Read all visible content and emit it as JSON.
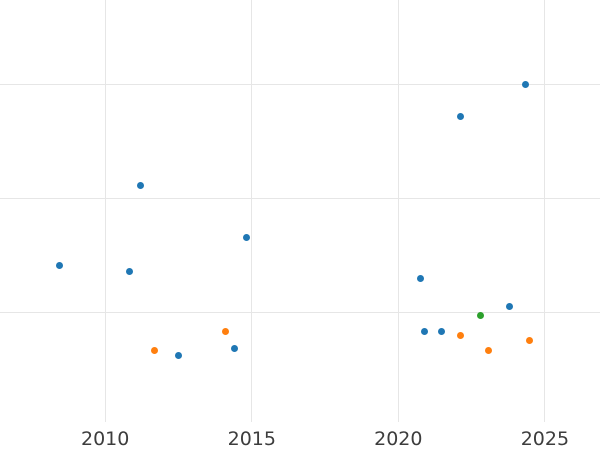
{
  "chart_data": {
    "type": "scatter",
    "title": "",
    "xlabel": "",
    "ylabel": "",
    "grid": true,
    "legend": false,
    "x_ticks": [
      {
        "year": 2010,
        "label": "2010"
      },
      {
        "year": 2015,
        "label": "2015"
      },
      {
        "year": 2020,
        "label": "2020"
      },
      {
        "year": 2025,
        "label": "2025"
      }
    ],
    "y_gridline_units": [
      1,
      2,
      3
    ],
    "y_tick_labels_visible": false,
    "y_unit_note": "y-axis tick labels are cropped out of view; y values given in gridline units (one visible gridline = 1 unit)",
    "xlim_years": [
      2006.41,
      2026.88
    ],
    "ylim_units": [
      -0.2,
      3.74
    ],
    "marker_diameter_px": 7,
    "series": [
      {
        "name": "series-blue",
        "color": "#1f77b4",
        "points": [
          {
            "x": 2008.43,
            "y": 1.42
          },
          {
            "x": 2010.82,
            "y": 1.36
          },
          {
            "x": 2011.19,
            "y": 2.12
          },
          {
            "x": 2012.49,
            "y": 0.63
          },
          {
            "x": 2014.4,
            "y": 0.69
          },
          {
            "x": 2014.81,
            "y": 1.66
          },
          {
            "x": 2020.76,
            "y": 1.3
          },
          {
            "x": 2020.88,
            "y": 0.84
          },
          {
            "x": 2021.46,
            "y": 0.84
          },
          {
            "x": 2022.11,
            "y": 2.72
          },
          {
            "x": 2023.78,
            "y": 1.06
          },
          {
            "x": 2024.32,
            "y": 3.0
          }
        ]
      },
      {
        "name": "series-orange",
        "color": "#ff7f0e",
        "points": [
          {
            "x": 2011.69,
            "y": 0.67
          },
          {
            "x": 2014.09,
            "y": 0.84
          },
          {
            "x": 2022.11,
            "y": 0.8
          },
          {
            "x": 2023.06,
            "y": 0.67
          },
          {
            "x": 2024.49,
            "y": 0.76
          }
        ]
      },
      {
        "name": "series-green",
        "color": "#2ca02c",
        "points": [
          {
            "x": 2022.79,
            "y": 0.98
          }
        ]
      }
    ]
  }
}
